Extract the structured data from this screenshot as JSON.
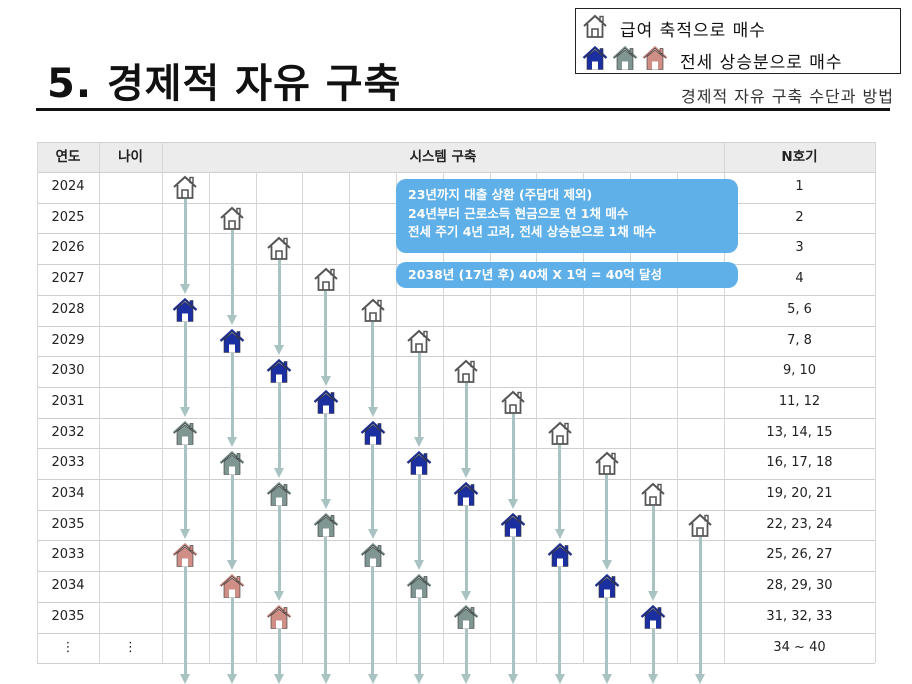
{
  "legend": {
    "row1_label": "급여 축적으로 매수",
    "row2_label": "전세 상승분으로 매수",
    "row1_icon": "house-outline-icon",
    "row2_icons": [
      "house-blue-icon",
      "house-gray-icon",
      "house-pink-icon"
    ]
  },
  "title": "5. 경제적 자유 구축",
  "subtitle": "경제적 자유 구축 수단과 방법",
  "table": {
    "headers": {
      "year": "연도",
      "age": "나이",
      "system": "시스템 구축",
      "n": "N호기"
    },
    "rows": [
      {
        "year": "2024",
        "age": "",
        "n": "1"
      },
      {
        "year": "2025",
        "age": "",
        "n": "2"
      },
      {
        "year": "2026",
        "age": "",
        "n": "3"
      },
      {
        "year": "2027",
        "age": "",
        "n": "4"
      },
      {
        "year": "2028",
        "age": "",
        "n": "5, 6"
      },
      {
        "year": "2029",
        "age": "",
        "n": "7, 8"
      },
      {
        "year": "2030",
        "age": "",
        "n": "9, 10"
      },
      {
        "year": "2031",
        "age": "",
        "n": "11, 12"
      },
      {
        "year": "2032",
        "age": "",
        "n": "13, 14, 15"
      },
      {
        "year": "2033",
        "age": "",
        "n": "16, 17, 18"
      },
      {
        "year": "2034",
        "age": "",
        "n": "19, 20, 21"
      },
      {
        "year": "2035",
        "age": "",
        "n": "22, 23, 24"
      },
      {
        "year": "2033",
        "age": "",
        "n": "25, 26, 27"
      },
      {
        "year": "2034",
        "age": "",
        "n": "28, 29, 30"
      },
      {
        "year": "2035",
        "age": "",
        "n": "31, 32, 33"
      },
      {
        "year": "⋮",
        "age": "⋮",
        "n": "34 ~ 40"
      }
    ]
  },
  "callouts": {
    "box1": [
      "23년까지 대출 상환 (주담대 제외)",
      "24년부터 근로소득 현금으로 연 1채 매수",
      "전세 주기 4년 고려, 전세 상승분으로 1채 매수"
    ],
    "box2": "2038년 (17년 후) 40채 X 1억 = 40억 달성"
  },
  "colors": {
    "outline": "#555555",
    "blue": "#1c2fa0",
    "gray": "#7f9692",
    "pink": "#cf8f86",
    "arrow": "#a9c2c2",
    "callout": "#5fb0e8"
  },
  "houses": [
    {
      "col": 0,
      "row": 0,
      "type": "outline"
    },
    {
      "col": 1,
      "row": 1,
      "type": "outline"
    },
    {
      "col": 2,
      "row": 2,
      "type": "outline"
    },
    {
      "col": 3,
      "row": 3,
      "type": "outline"
    },
    {
      "col": 4,
      "row": 4,
      "type": "outline"
    },
    {
      "col": 5,
      "row": 5,
      "type": "outline"
    },
    {
      "col": 6,
      "row": 6,
      "type": "outline"
    },
    {
      "col": 7,
      "row": 7,
      "type": "outline"
    },
    {
      "col": 8,
      "row": 8,
      "type": "outline"
    },
    {
      "col": 9,
      "row": 9,
      "type": "outline"
    },
    {
      "col": 10,
      "row": 10,
      "type": "outline"
    },
    {
      "col": 11,
      "row": 11,
      "type": "outline"
    },
    {
      "col": 0,
      "row": 4,
      "type": "blue"
    },
    {
      "col": 1,
      "row": 5,
      "type": "blue"
    },
    {
      "col": 2,
      "row": 6,
      "type": "blue"
    },
    {
      "col": 3,
      "row": 7,
      "type": "blue"
    },
    {
      "col": 4,
      "row": 8,
      "type": "blue"
    },
    {
      "col": 5,
      "row": 9,
      "type": "blue"
    },
    {
      "col": 6,
      "row": 10,
      "type": "blue"
    },
    {
      "col": 7,
      "row": 11,
      "type": "blue"
    },
    {
      "col": 8,
      "row": 12,
      "type": "blue"
    },
    {
      "col": 9,
      "row": 13,
      "type": "blue"
    },
    {
      "col": 10,
      "row": 14,
      "type": "blue"
    },
    {
      "col": 0,
      "row": 8,
      "type": "gray"
    },
    {
      "col": 1,
      "row": 9,
      "type": "gray"
    },
    {
      "col": 2,
      "row": 10,
      "type": "gray"
    },
    {
      "col": 3,
      "row": 11,
      "type": "gray"
    },
    {
      "col": 4,
      "row": 12,
      "type": "gray"
    },
    {
      "col": 5,
      "row": 13,
      "type": "gray"
    },
    {
      "col": 6,
      "row": 14,
      "type": "gray"
    },
    {
      "col": 0,
      "row": 12,
      "type": "pink"
    },
    {
      "col": 1,
      "row": 13,
      "type": "pink"
    },
    {
      "col": 2,
      "row": 14,
      "type": "pink"
    }
  ],
  "arrows": [
    {
      "col": 0,
      "from": 0,
      "to": 4
    },
    {
      "col": 0,
      "from": 4,
      "to": 8
    },
    {
      "col": 0,
      "from": 8,
      "to": 12
    },
    {
      "col": 0,
      "from": 12,
      "to": 16
    },
    {
      "col": 1,
      "from": 1,
      "to": 5
    },
    {
      "col": 1,
      "from": 5,
      "to": 9
    },
    {
      "col": 1,
      "from": 9,
      "to": 13
    },
    {
      "col": 1,
      "from": 13,
      "to": 16
    },
    {
      "col": 2,
      "from": 2,
      "to": 6
    },
    {
      "col": 2,
      "from": 6,
      "to": 10
    },
    {
      "col": 2,
      "from": 10,
      "to": 14
    },
    {
      "col": 2,
      "from": 14,
      "to": 16
    },
    {
      "col": 3,
      "from": 3,
      "to": 7
    },
    {
      "col": 3,
      "from": 7,
      "to": 11
    },
    {
      "col": 3,
      "from": 11,
      "to": 16
    },
    {
      "col": 4,
      "from": 4,
      "to": 8
    },
    {
      "col": 4,
      "from": 8,
      "to": 12
    },
    {
      "col": 4,
      "from": 12,
      "to": 16
    },
    {
      "col": 5,
      "from": 5,
      "to": 9
    },
    {
      "col": 5,
      "from": 9,
      "to": 13
    },
    {
      "col": 5,
      "from": 13,
      "to": 16
    },
    {
      "col": 6,
      "from": 6,
      "to": 10
    },
    {
      "col": 6,
      "from": 10,
      "to": 14
    },
    {
      "col": 6,
      "from": 14,
      "to": 16
    },
    {
      "col": 7,
      "from": 7,
      "to": 11
    },
    {
      "col": 7,
      "from": 11,
      "to": 16
    },
    {
      "col": 8,
      "from": 8,
      "to": 12
    },
    {
      "col": 8,
      "from": 12,
      "to": 16
    },
    {
      "col": 9,
      "from": 9,
      "to": 13
    },
    {
      "col": 9,
      "from": 13,
      "to": 16
    },
    {
      "col": 10,
      "from": 10,
      "to": 14
    },
    {
      "col": 10,
      "from": 14,
      "to": 16
    },
    {
      "col": 11,
      "from": 11,
      "to": 16
    }
  ]
}
